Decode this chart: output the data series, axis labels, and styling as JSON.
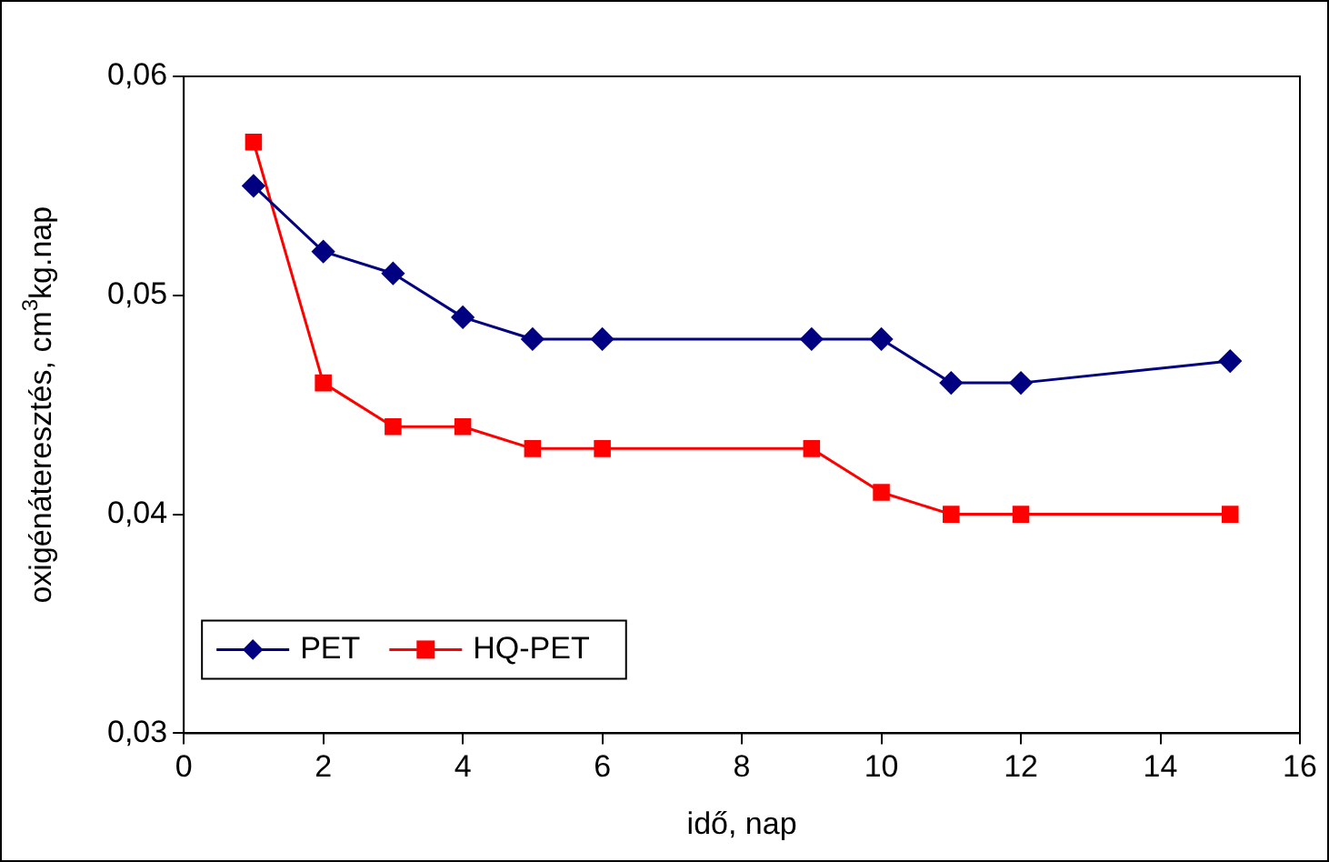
{
  "chart_data": {
    "type": "line",
    "xlabel": "idő, nap",
    "ylabel": "oxigénáteresztés, cm$^{3}$kg.nap",
    "xlim": [
      0,
      16
    ],
    "xticks": [
      0,
      2,
      4,
      6,
      8,
      10,
      12,
      14,
      16
    ],
    "ylim": [
      0.03,
      0.06
    ],
    "yticks": [
      {
        "value": 0.03,
        "label": "0,03"
      },
      {
        "value": 0.04,
        "label": "0,04"
      },
      {
        "value": 0.05,
        "label": "0,05"
      },
      {
        "value": 0.06,
        "label": "0,06"
      }
    ],
    "grid": false,
    "legend": "bottom left",
    "line_style": "solid",
    "series": [
      {
        "name": "PET",
        "color": "#000080",
        "marker": "diamond",
        "x": [
          1,
          2,
          3,
          4,
          5,
          6,
          9,
          10,
          11,
          12,
          15
        ],
        "values": [
          0.055,
          0.052,
          0.051,
          0.049,
          0.048,
          0.048,
          0.048,
          0.048,
          0.046,
          0.046,
          0.047
        ]
      },
      {
        "name": "HQ-PET",
        "color": "#ff0000",
        "marker": "square",
        "x": [
          1,
          2,
          3,
          4,
          5,
          6,
          9,
          10,
          11,
          12,
          15
        ],
        "values": [
          0.057,
          0.046,
          0.044,
          0.044,
          0.043,
          0.043,
          0.043,
          0.041,
          0.04,
          0.04,
          0.04
        ]
      }
    ]
  }
}
